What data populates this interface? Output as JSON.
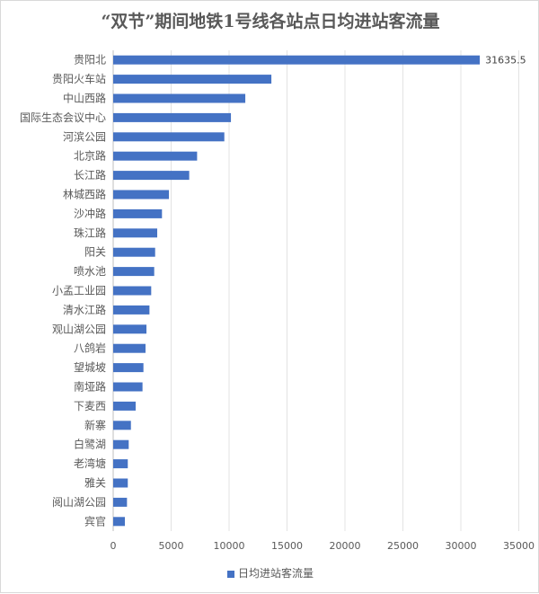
{
  "chart_data": {
    "type": "bar",
    "orientation": "horizontal",
    "title": "“双节”期间地铁1号线各站点日均进站客流量",
    "categories": [
      "贵阳北",
      "贵阳火车站",
      "中山西路",
      "国际生态会议中心",
      "河滨公园",
      "北京路",
      "长江路",
      "林城西路",
      "沙冲路",
      "珠江路",
      "阳关",
      "喷水池",
      "小孟工业园",
      "清水江路",
      "观山湖公园",
      "八鸽岩",
      "望城坡",
      "南垭路",
      "下麦西",
      "新寨",
      "白鹭湖",
      "老湾塘",
      "雅关",
      "阅山湖公园",
      "宾官"
    ],
    "series": [
      {
        "name": "日均进站客流量",
        "values": [
          31635.5,
          13650,
          11400,
          10160,
          9590,
          7240,
          6560,
          4810,
          4210,
          3800,
          3620,
          3540,
          3280,
          3130,
          2870,
          2790,
          2610,
          2530,
          1940,
          1530,
          1340,
          1260,
          1260,
          1190,
          1010
        ]
      }
    ],
    "data_labels": {
      "0": "31635.5"
    },
    "xlim": [
      0,
      35000
    ],
    "xticks": [
      "0",
      "5000",
      "10000",
      "15000",
      "20000",
      "25000",
      "30000",
      "35000"
    ],
    "grid": true,
    "legend_position": "bottom",
    "color": "#4472c4"
  }
}
